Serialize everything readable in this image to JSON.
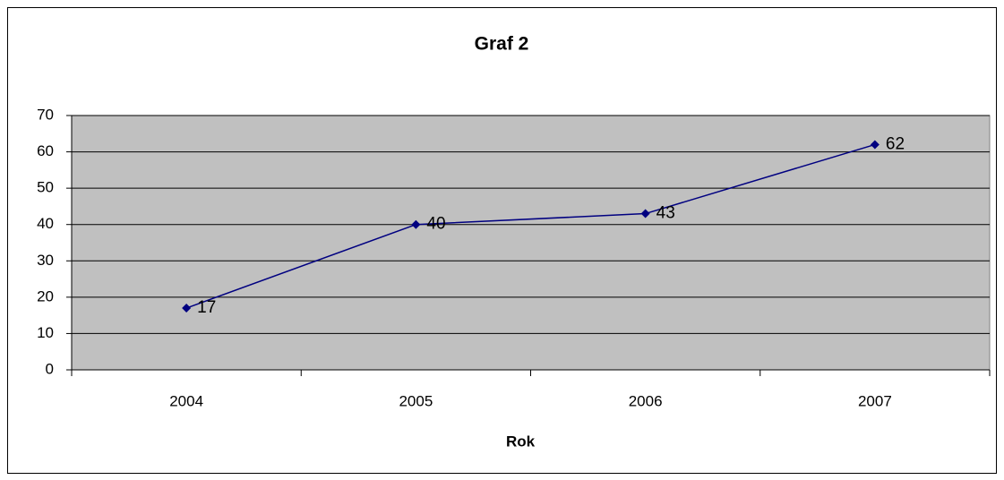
{
  "chart_data": {
    "type": "line",
    "title": "Graf 2",
    "x_label": "Rok",
    "categories": [
      "2004",
      "2005",
      "2006",
      "2007"
    ],
    "series": [
      {
        "name": "Graf 2",
        "color": "#000080",
        "values": [
          17,
          40,
          43,
          62
        ]
      }
    ],
    "ylim": [
      0,
      70
    ],
    "yticks": [
      0,
      10,
      20,
      30,
      40,
      50,
      60,
      70
    ],
    "grid": true,
    "plot_background": "#c0c0c0",
    "data_labels": true
  }
}
